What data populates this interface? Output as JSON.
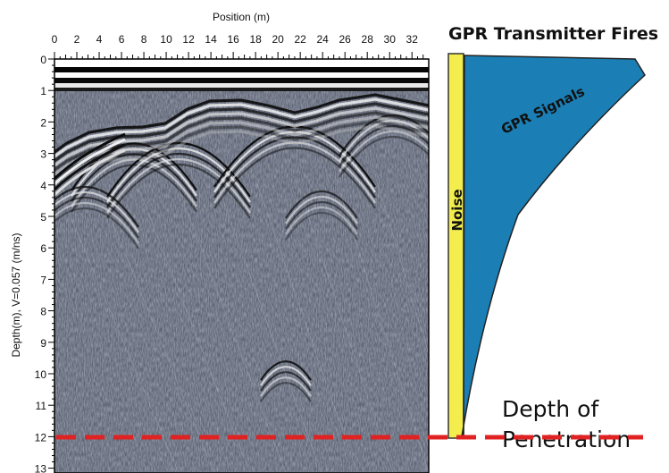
{
  "radargram": {
    "x_axis_title": "Position (m)",
    "x_ticks": [
      "0",
      "2",
      "4",
      "6",
      "8",
      "10",
      "12",
      "14",
      "16",
      "18",
      "20",
      "22",
      "24",
      "26",
      "28",
      "30",
      "32"
    ],
    "y_axis_title": "Depth(m), V=0.057 (m/ns)",
    "y_ticks": [
      "0",
      "1",
      "2",
      "3",
      "4",
      "5",
      "6",
      "7",
      "8",
      "9",
      "10",
      "11",
      "12",
      "13"
    ]
  },
  "diagram": {
    "title": "GPR Transmitter Fires",
    "signal_label": "GPR Signals",
    "noise_label": "Noise",
    "depth_label_line1": "Depth of",
    "depth_label_line2": "Penetration"
  },
  "colors": {
    "signal": "#1b7fb5",
    "noise": "#f3ee4e",
    "depth_line": "#e02222",
    "radargram_bg": "#5d6475"
  }
}
